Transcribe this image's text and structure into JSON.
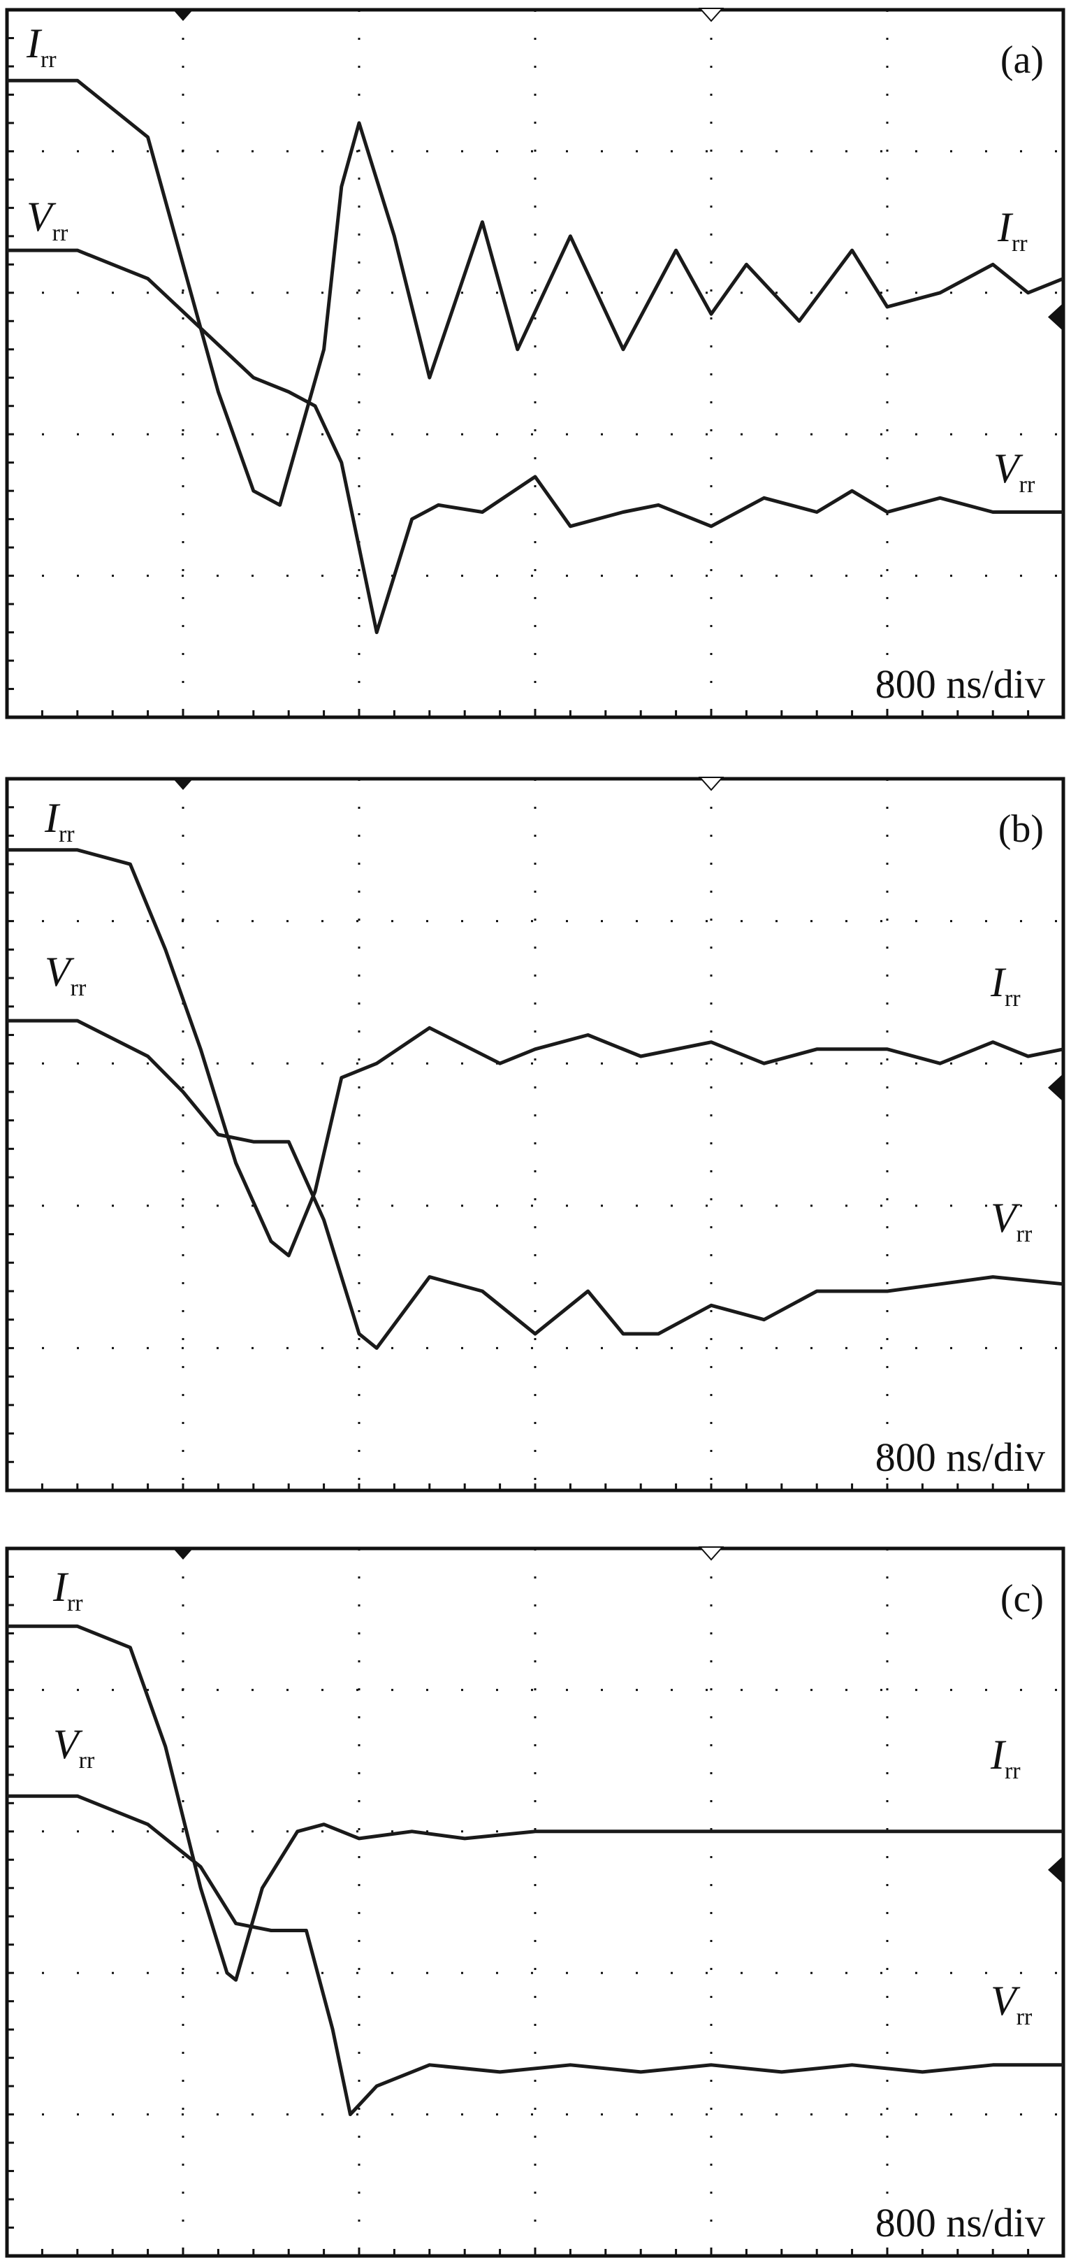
{
  "figure": {
    "colors": {
      "background": "#ffffff",
      "frame": "#111111",
      "grid": "#111111",
      "trace": "#1a1a1a"
    },
    "marker_icons": [
      "trigger-position-marker-icon",
      "time-reference-marker-icon",
      "channel-level-marker-icon"
    ]
  },
  "chart_data": [
    {
      "type": "line",
      "panel_label": "(a)",
      "time_scale": "800 ns/div",
      "grid": true,
      "divisions": {
        "x": 6,
        "y": 5
      },
      "ylim": [
        0,
        5
      ],
      "series": [
        {
          "name": "Irr",
          "label_main": "I",
          "label_sub": "rr",
          "x": [
            0,
            0.4,
            0.8,
            1.0,
            1.2,
            1.4,
            1.55,
            1.8,
            1.9,
            2.0,
            2.2,
            2.4,
            2.7,
            2.9,
            3.2,
            3.5,
            3.8,
            4.0,
            4.2,
            4.5,
            4.8,
            5.0,
            5.3,
            5.6,
            5.8,
            6.0
          ],
          "y": [
            4.5,
            4.5,
            4.1,
            3.2,
            2.3,
            1.6,
            1.5,
            2.6,
            3.75,
            4.2,
            3.4,
            2.4,
            3.5,
            2.6,
            3.4,
            2.6,
            3.3,
            2.85,
            3.2,
            2.8,
            3.3,
            2.9,
            3.0,
            3.2,
            3.0,
            3.1
          ]
        },
        {
          "name": "Vrr",
          "label_main": "V",
          "label_sub": "rr",
          "x": [
            0,
            0.4,
            0.8,
            1.1,
            1.4,
            1.6,
            1.75,
            1.9,
            2.1,
            2.3,
            2.45,
            2.7,
            3.0,
            3.2,
            3.5,
            3.7,
            4.0,
            4.3,
            4.6,
            4.8,
            5.0,
            5.3,
            5.6,
            6.0
          ],
          "y": [
            3.3,
            3.3,
            3.1,
            2.75,
            2.4,
            2.3,
            2.2,
            1.8,
            0.6,
            1.4,
            1.5,
            1.45,
            1.7,
            1.35,
            1.45,
            1.5,
            1.35,
            1.55,
            1.45,
            1.6,
            1.45,
            1.55,
            1.45,
            1.45
          ]
        }
      ]
    },
    {
      "type": "line",
      "panel_label": "(b)",
      "time_scale": "800 ns/div",
      "grid": true,
      "divisions": {
        "x": 6,
        "y": 5
      },
      "ylim": [
        0,
        5
      ],
      "series": [
        {
          "name": "Irr",
          "label_main": "I",
          "label_sub": "rr",
          "x": [
            0,
            0.4,
            0.7,
            0.9,
            1.1,
            1.3,
            1.5,
            1.6,
            1.75,
            1.9,
            2.1,
            2.4,
            2.8,
            3.0,
            3.3,
            3.6,
            4.0,
            4.3,
            4.6,
            5.0,
            5.3,
            5.6,
            5.8,
            6.0
          ],
          "y": [
            4.5,
            4.5,
            4.4,
            3.8,
            3.1,
            2.3,
            1.75,
            1.65,
            2.1,
            2.9,
            3.0,
            3.25,
            3.0,
            3.1,
            3.2,
            3.05,
            3.15,
            3.0,
            3.1,
            3.1,
            3.0,
            3.15,
            3.05,
            3.1
          ]
        },
        {
          "name": "Vrr",
          "label_main": "V",
          "label_sub": "rr",
          "x": [
            0,
            0.4,
            0.8,
            1.0,
            1.2,
            1.4,
            1.6,
            1.8,
            2.0,
            2.1,
            2.4,
            2.7,
            3.0,
            3.3,
            3.5,
            3.7,
            4.0,
            4.3,
            4.6,
            5.0,
            5.3,
            5.6,
            6.0
          ],
          "y": [
            3.3,
            3.3,
            3.05,
            2.8,
            2.5,
            2.45,
            2.45,
            1.9,
            1.1,
            1.0,
            1.5,
            1.4,
            1.1,
            1.4,
            1.1,
            1.1,
            1.3,
            1.2,
            1.4,
            1.4,
            1.45,
            1.5,
            1.45
          ]
        }
      ]
    },
    {
      "type": "line",
      "panel_label": "(c)",
      "time_scale": "800 ns/div",
      "grid": true,
      "divisions": {
        "x": 6,
        "y": 5
      },
      "ylim": [
        0,
        5
      ],
      "series": [
        {
          "name": "Irr",
          "label_main": "I",
          "label_sub": "rr",
          "x": [
            0,
            0.4,
            0.7,
            0.9,
            1.1,
            1.25,
            1.3,
            1.45,
            1.65,
            1.8,
            2.0,
            2.3,
            2.6,
            3.0,
            3.5,
            4.0,
            4.5,
            5.0,
            5.5,
            6.0
          ],
          "y": [
            4.45,
            4.45,
            4.3,
            3.6,
            2.6,
            2.0,
            1.95,
            2.6,
            3.0,
            3.05,
            2.95,
            3.0,
            2.95,
            3.0,
            3.0,
            3.0,
            3.0,
            3.0,
            3.0,
            3.0
          ]
        },
        {
          "name": "Vrr",
          "label_main": "V",
          "label_sub": "rr",
          "x": [
            0,
            0.4,
            0.8,
            1.1,
            1.3,
            1.5,
            1.7,
            1.85,
            1.95,
            2.1,
            2.4,
            2.8,
            3.2,
            3.6,
            4.0,
            4.4,
            4.8,
            5.2,
            5.6,
            6.0
          ],
          "y": [
            3.25,
            3.25,
            3.05,
            2.75,
            2.35,
            2.3,
            2.3,
            1.6,
            1.0,
            1.2,
            1.35,
            1.3,
            1.35,
            1.3,
            1.35,
            1.3,
            1.35,
            1.3,
            1.35,
            1.35
          ]
        }
      ]
    }
  ]
}
